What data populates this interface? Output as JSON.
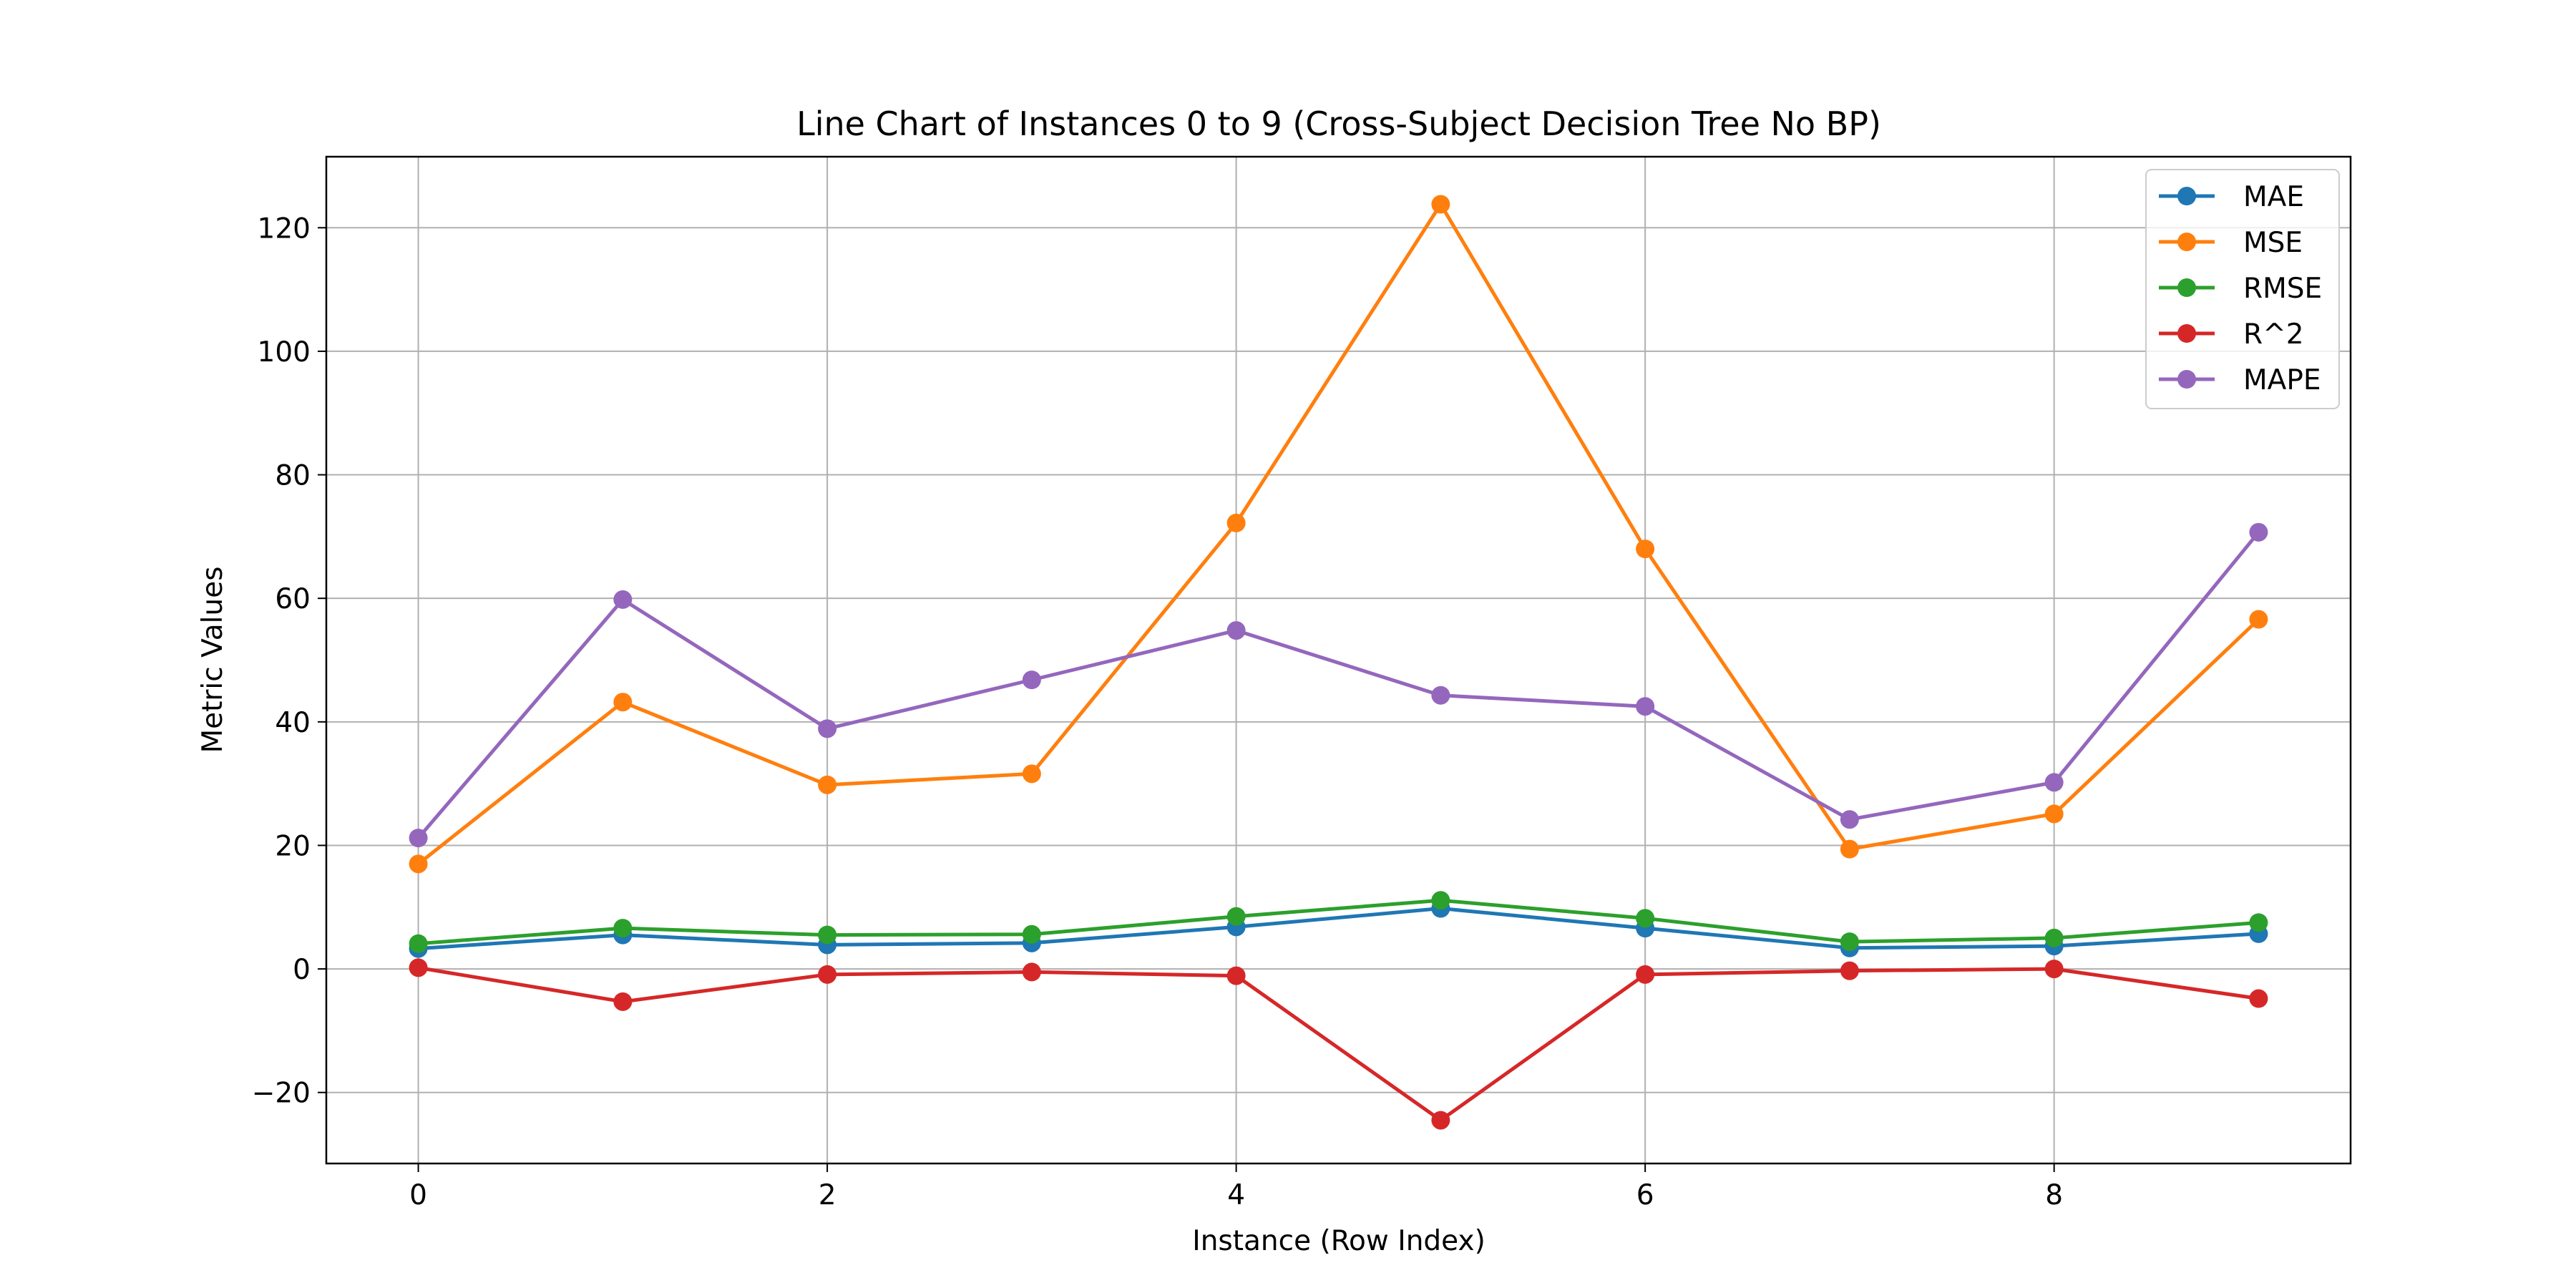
{
  "chart_data": {
    "type": "line",
    "title": "Line Chart of Instances 0 to 9 (Cross-Subject Decision Tree No BP)",
    "xlabel": "Instance (Row Index)",
    "ylabel": "Metric Values",
    "x": [
      0,
      1,
      2,
      3,
      4,
      5,
      6,
      7,
      8,
      9
    ],
    "xlim": [
      -0.45,
      9.45
    ],
    "ylim": [
      -31.5,
      131.5
    ],
    "xticks": [
      0,
      2,
      4,
      6,
      8
    ],
    "yticks": [
      -20,
      0,
      20,
      40,
      60,
      80,
      100,
      120
    ],
    "xtick_labels": [
      "0",
      "2",
      "4",
      "6",
      "8"
    ],
    "ytick_labels": [
      "−20",
      "0",
      "20",
      "40",
      "60",
      "80",
      "100",
      "120"
    ],
    "grid": true,
    "legend_position": "top-right",
    "series": [
      {
        "name": "MAE",
        "color": "#1f77b4",
        "values": [
          3.3,
          5.5,
          3.9,
          4.2,
          6.8,
          9.8,
          6.6,
          3.4,
          3.7,
          5.7
        ]
      },
      {
        "name": "MSE",
        "color": "#ff7f0e",
        "values": [
          17.0,
          43.2,
          29.8,
          31.6,
          72.2,
          123.8,
          68.0,
          19.4,
          25.1,
          56.6
        ]
      },
      {
        "name": "RMSE",
        "color": "#2ca02c",
        "values": [
          4.1,
          6.6,
          5.5,
          5.6,
          8.5,
          11.1,
          8.2,
          4.4,
          5.0,
          7.5
        ]
      },
      {
        "name": "R^2",
        "color": "#d62728",
        "values": [
          0.2,
          -5.3,
          -0.9,
          -0.5,
          -1.1,
          -24.5,
          -0.9,
          -0.3,
          0.0,
          -4.8
        ]
      },
      {
        "name": "MAPE",
        "color": "#9467bd",
        "values": [
          21.2,
          59.8,
          38.9,
          46.8,
          54.8,
          44.3,
          42.5,
          24.2,
          30.2,
          70.7
        ]
      }
    ]
  }
}
